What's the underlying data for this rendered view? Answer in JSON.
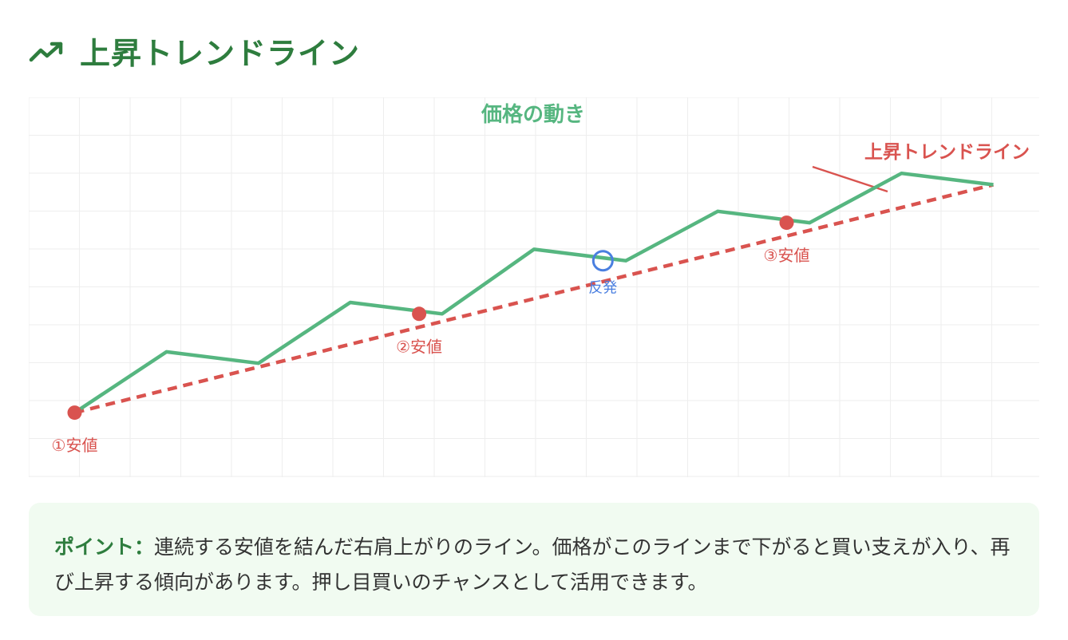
{
  "header": {
    "title": "上昇トレンドライン",
    "icon": "trending-up-icon"
  },
  "colors": {
    "price_line": "#56b680",
    "trend_line": "#d9534f",
    "rebound": "#4a7fe0",
    "title_green": "#2e7d3e",
    "chart_title": "#56b680"
  },
  "chart_data": {
    "type": "line",
    "title": "価格の動き",
    "grid": true,
    "x": [
      0,
      1,
      2,
      3,
      4,
      5,
      6,
      7,
      8,
      9,
      10
    ],
    "xlim": [
      -0.5,
      10.5
    ],
    "ylim": [
      0,
      100
    ],
    "series": [
      {
        "values": [
          17,
          33,
          30,
          46,
          43,
          60,
          57,
          70,
          67,
          80,
          77
        ]
      }
    ],
    "trendline": {
      "label": "上昇トレンドライン",
      "from": [
        0,
        17
      ],
      "to": [
        10,
        77
      ]
    },
    "annotations": [
      {
        "label": "①安値",
        "x": 0,
        "y": 17,
        "kind": "low"
      },
      {
        "label": "②安値",
        "x": 3.75,
        "y": 43,
        "kind": "low"
      },
      {
        "label": "反発",
        "x": 5.75,
        "y": 57,
        "kind": "rebound"
      },
      {
        "label": "③安値",
        "x": 7.75,
        "y": 67,
        "kind": "low"
      }
    ]
  },
  "point": {
    "label": "ポイント：",
    "text": "連続する安値を結んだ右肩上がりのライン。価格がこのラインまで下がると買い支えが入り、再び上昇する傾向があります。押し目買いのチャンスとして活用できます。"
  }
}
